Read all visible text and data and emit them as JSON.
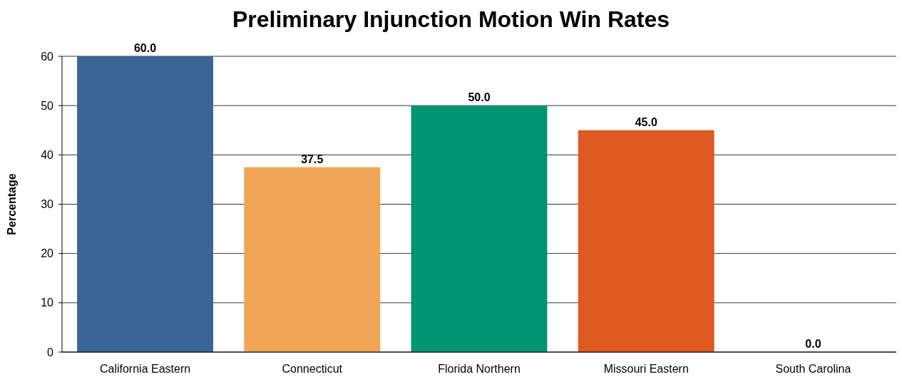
{
  "chart_data": {
    "type": "bar",
    "title": "Preliminary Injunction Motion Win Rates",
    "ylabel": "Percentage",
    "categories": [
      "California Eastern",
      "Connecticut",
      "Florida Northern",
      "Missouri Eastern",
      "South Carolina"
    ],
    "values": [
      60.0,
      37.5,
      50.0,
      45.0,
      0.0
    ],
    "colors": [
      "#3a6595",
      "#f0a455",
      "#009472",
      "#de5a21",
      "#7a7a7a"
    ],
    "value_labels": [
      "60.0",
      "37.5",
      "50.0",
      "45.0",
      "0.0"
    ],
    "ylim": [
      0,
      60
    ],
    "yticks": [
      0,
      10,
      20,
      30,
      40,
      50,
      60
    ],
    "grid": "y"
  }
}
